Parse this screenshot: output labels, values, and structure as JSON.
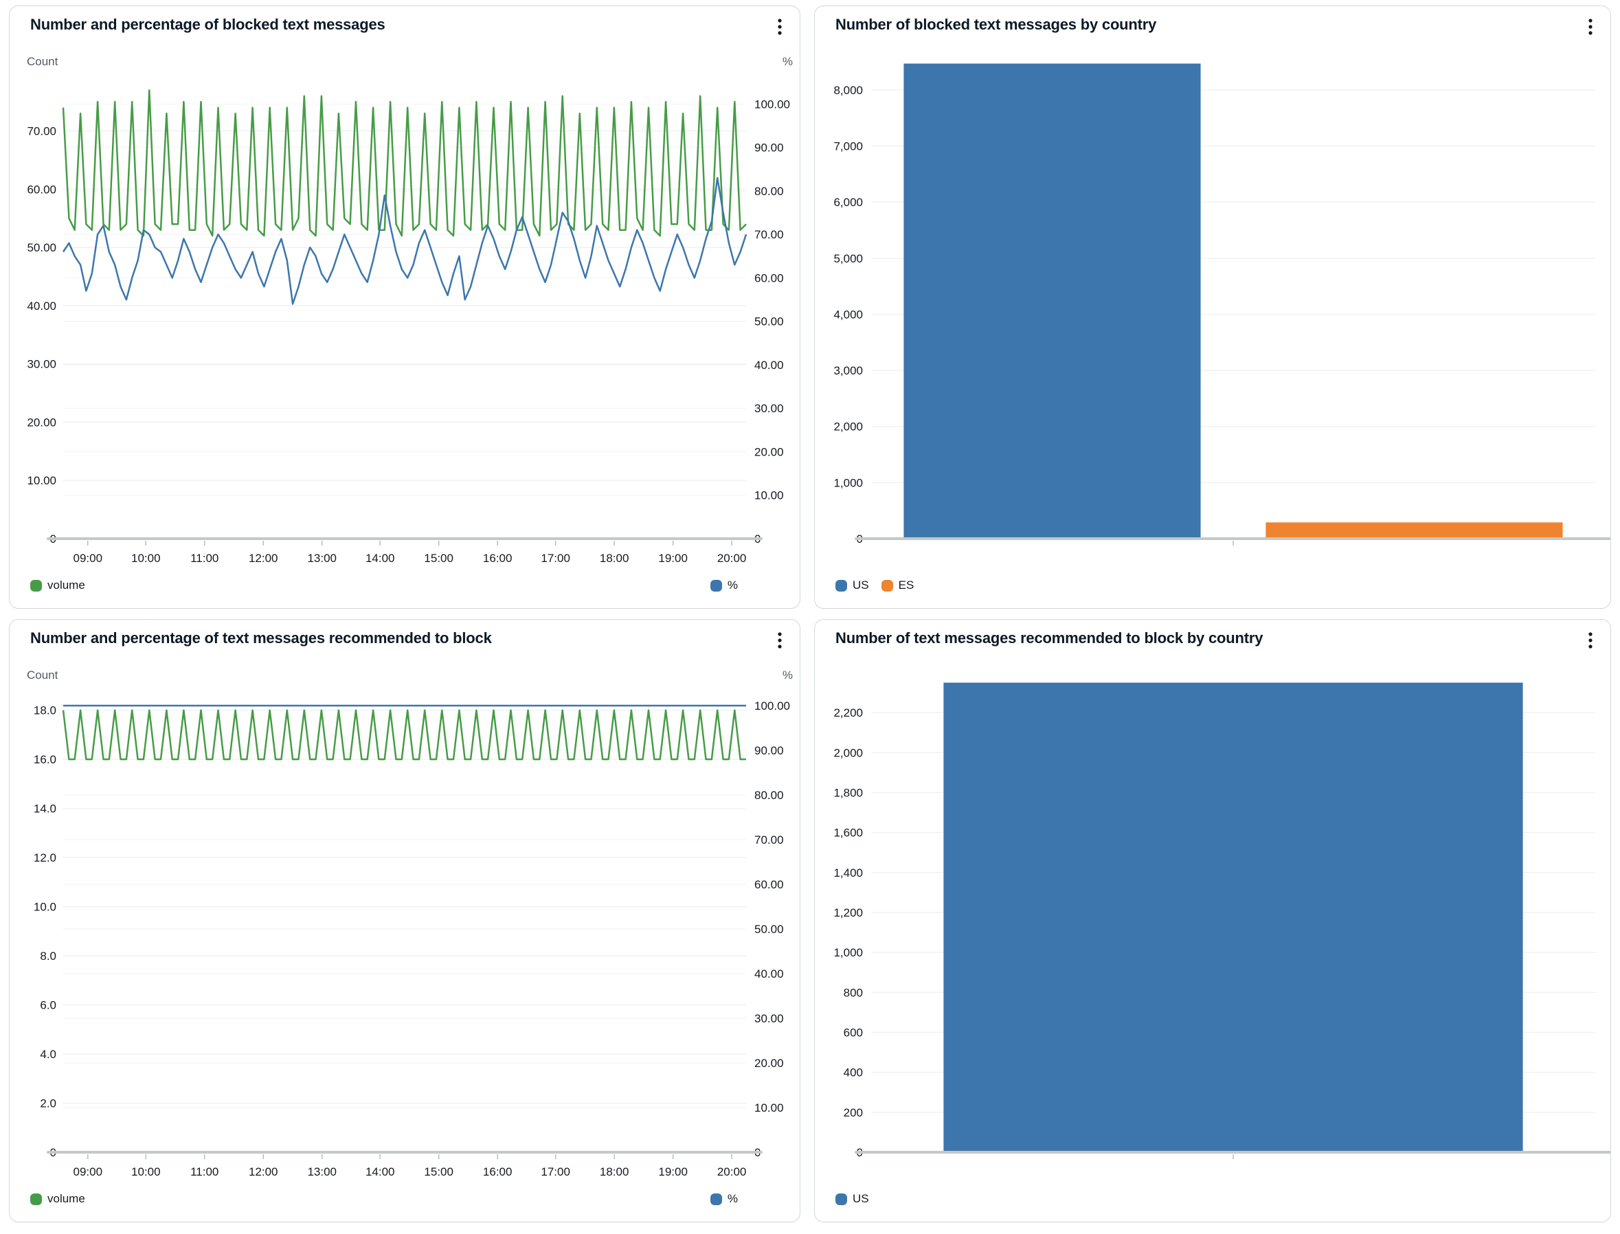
{
  "colors": {
    "green": "#469c46",
    "blue": "#3c76ad",
    "orange": "#ee8430",
    "gridline": "#f0f2f2",
    "baseline": "#c4c8c8",
    "tick_mark": "#b5bdbd",
    "title_text": "#0d1a26",
    "tick_text": "#16191f",
    "axis_caption_text": "#545b64",
    "panel_border": "#d5d9d9"
  },
  "icons": {
    "widget_menu": "kebab-vertical-three-dots"
  },
  "chart_data": [
    {
      "name": "blocked-messages-line",
      "type": "line",
      "title": "Number and percentage of blocked text messages",
      "left_axis_label": "Count",
      "right_axis_label": "%",
      "left_max": 78.2,
      "right_max": 104.8,
      "left_ticks": [
        {
          "v": 70,
          "label": "70.00"
        },
        {
          "v": 60,
          "label": "60.00"
        },
        {
          "v": 50,
          "label": "50.00"
        },
        {
          "v": 40,
          "label": "40.00"
        },
        {
          "v": 30,
          "label": "30.00"
        },
        {
          "v": 20,
          "label": "20.00"
        },
        {
          "v": 10,
          "label": "10.00"
        },
        {
          "v": 0,
          "label": "0"
        }
      ],
      "right_ticks": [
        {
          "v": 100,
          "label": "100.00"
        },
        {
          "v": 90,
          "label": "90.00"
        },
        {
          "v": 80,
          "label": "80.00"
        },
        {
          "v": 70,
          "label": "70.00"
        },
        {
          "v": 60,
          "label": "60.00"
        },
        {
          "v": 50,
          "label": "50.00"
        },
        {
          "v": 40,
          "label": "40.00"
        },
        {
          "v": 30,
          "label": "30.00"
        },
        {
          "v": 20,
          "label": "20.00"
        },
        {
          "v": 10,
          "label": "10.00"
        },
        {
          "v": 0,
          "label": "0"
        }
      ],
      "x_ticks": [
        {
          "label": "09:00",
          "pos": 0.036
        },
        {
          "label": "10:00",
          "pos": 0.121
        },
        {
          "label": "11:00",
          "pos": 0.207
        },
        {
          "label": "12:00",
          "pos": 0.293
        },
        {
          "label": "13:00",
          "pos": 0.379
        },
        {
          "label": "14:00",
          "pos": 0.464
        },
        {
          "label": "15:00",
          "pos": 0.55
        },
        {
          "label": "16:00",
          "pos": 0.636
        },
        {
          "label": "17:00",
          "pos": 0.721
        },
        {
          "label": "18:00",
          "pos": 0.807
        },
        {
          "label": "19:00",
          "pos": 0.893
        },
        {
          "label": "20:00",
          "pos": 0.979
        }
      ],
      "x_range_note": "time of day 08:35 to 20:15",
      "series": [
        {
          "name": "volume",
          "axis": "left",
          "color": "#469c46",
          "values": [
            74,
            55,
            53,
            73,
            54,
            53,
            75,
            54,
            53,
            75,
            53,
            54,
            75,
            53,
            52,
            77,
            54,
            53,
            73,
            54,
            54,
            75,
            53,
            53,
            75,
            54,
            52,
            74,
            53,
            54,
            73,
            54,
            53,
            74,
            53,
            52,
            74,
            54,
            53,
            74,
            53,
            55,
            76,
            53,
            52,
            76,
            54,
            53,
            73,
            55,
            54,
            75,
            54,
            53,
            74,
            53,
            53,
            75,
            54,
            52,
            74,
            53,
            54,
            73,
            54,
            53,
            75,
            53,
            52,
            74,
            54,
            53,
            75,
            53,
            54,
            74,
            54,
            53,
            75,
            53,
            53,
            74,
            54,
            52,
            75,
            53,
            54,
            76,
            54,
            53,
            73,
            53,
            54,
            74,
            54,
            53,
            74,
            53,
            53,
            75,
            55,
            53,
            74,
            53,
            52,
            75,
            54,
            54,
            73,
            54,
            53,
            76,
            53,
            53,
            74,
            54,
            53,
            75,
            53,
            54
          ]
        },
        {
          "name": "%",
          "axis": "right",
          "color": "#3c76ad",
          "values": [
            66,
            68,
            65,
            63,
            57,
            61,
            70,
            72,
            66,
            63,
            58,
            55,
            60,
            64,
            71,
            70,
            67,
            66,
            63,
            60,
            64,
            69,
            66,
            62,
            59,
            63,
            67,
            70,
            68,
            65,
            62,
            60,
            63,
            66,
            61,
            58,
            62,
            66,
            69,
            64,
            54,
            58,
            63,
            67,
            65,
            61,
            59,
            62,
            66,
            70,
            67,
            64,
            61,
            59,
            64,
            70,
            79,
            72,
            66,
            62,
            60,
            63,
            68,
            71,
            67,
            63,
            59,
            56,
            61,
            65,
            55,
            58,
            63,
            68,
            72,
            69,
            65,
            62,
            66,
            71,
            74,
            70,
            66,
            62,
            59,
            63,
            69,
            75,
            73,
            69,
            64,
            60,
            65,
            72,
            68,
            64,
            61,
            58,
            62,
            67,
            71,
            68,
            64,
            60,
            57,
            62,
            66,
            70,
            67,
            63,
            60,
            64,
            69,
            73,
            83,
            75,
            68,
            63,
            66,
            70
          ]
        }
      ],
      "legend_layout": "spread",
      "legend": [
        {
          "label": "volume",
          "color": "#469c46"
        },
        {
          "label": "%",
          "color": "#3c76ad"
        }
      ]
    },
    {
      "name": "blocked-messages-by-country",
      "type": "bar",
      "title": "Number of blocked text messages by country",
      "categories": [
        "US",
        "ES"
      ],
      "values": [
        8470,
        290
      ],
      "bar_colors": [
        "#3c76ad",
        "#ee8430"
      ],
      "ymax": 8550,
      "y_ticks": [
        {
          "v": 8000,
          "label": "8,000"
        },
        {
          "v": 7000,
          "label": "7,000"
        },
        {
          "v": 6000,
          "label": "6,000"
        },
        {
          "v": 5000,
          "label": "5,000"
        },
        {
          "v": 4000,
          "label": "4,000"
        },
        {
          "v": 3000,
          "label": "3,000"
        },
        {
          "v": 2000,
          "label": "2,000"
        },
        {
          "v": 1000,
          "label": "1,000"
        },
        {
          "v": 0,
          "label": "0"
        }
      ],
      "legend_layout": "start",
      "legend": [
        {
          "label": "US",
          "color": "#3c76ad"
        },
        {
          "label": "ES",
          "color": "#ee8430"
        }
      ]
    },
    {
      "name": "recommended-block-line",
      "type": "line",
      "title": "Number and percentage of text messages recommended to block",
      "left_axis_label": "Count",
      "right_axis_label": "%",
      "left_max": 18.55,
      "right_max": 102,
      "left_ticks": [
        {
          "v": 18,
          "label": "18.0"
        },
        {
          "v": 16,
          "label": "16.0"
        },
        {
          "v": 14,
          "label": "14.0"
        },
        {
          "v": 12,
          "label": "12.0"
        },
        {
          "v": 10,
          "label": "10.0"
        },
        {
          "v": 8,
          "label": "8.0"
        },
        {
          "v": 6,
          "label": "6.0"
        },
        {
          "v": 4,
          "label": "4.0"
        },
        {
          "v": 2,
          "label": "2.0"
        },
        {
          "v": 0,
          "label": "0"
        }
      ],
      "right_ticks": [
        {
          "v": 100,
          "label": "100.00"
        },
        {
          "v": 90,
          "label": "90.00"
        },
        {
          "v": 80,
          "label": "80.00"
        },
        {
          "v": 70,
          "label": "70.00"
        },
        {
          "v": 60,
          "label": "60.00"
        },
        {
          "v": 50,
          "label": "50.00"
        },
        {
          "v": 40,
          "label": "40.00"
        },
        {
          "v": 30,
          "label": "30.00"
        },
        {
          "v": 20,
          "label": "20.00"
        },
        {
          "v": 10,
          "label": "10.00"
        },
        {
          "v": 0,
          "label": "0"
        }
      ],
      "x_ticks": [
        {
          "label": "09:00",
          "pos": 0.036
        },
        {
          "label": "10:00",
          "pos": 0.121
        },
        {
          "label": "11:00",
          "pos": 0.207
        },
        {
          "label": "12:00",
          "pos": 0.293
        },
        {
          "label": "13:00",
          "pos": 0.379
        },
        {
          "label": "14:00",
          "pos": 0.464
        },
        {
          "label": "15:00",
          "pos": 0.55
        },
        {
          "label": "16:00",
          "pos": 0.636
        },
        {
          "label": "17:00",
          "pos": 0.721
        },
        {
          "label": "18:00",
          "pos": 0.807
        },
        {
          "label": "19:00",
          "pos": 0.893
        },
        {
          "label": "20:00",
          "pos": 0.979
        }
      ],
      "x_range_note": "time of day 08:35 to 20:15",
      "series": [
        {
          "name": "volume",
          "axis": "left",
          "color": "#469c46",
          "values": [
            18,
            16,
            16,
            18,
            16,
            16,
            18,
            16,
            16,
            18,
            16,
            16,
            18,
            16,
            16,
            18,
            16,
            16,
            18,
            16,
            16,
            18,
            16,
            16,
            18,
            16,
            16,
            18,
            16,
            16,
            18,
            16,
            16,
            18,
            16,
            16,
            18,
            16,
            16,
            18,
            16,
            16,
            18,
            16,
            16,
            18,
            16,
            16,
            18,
            16,
            16,
            18,
            16,
            16,
            18,
            16,
            16,
            18,
            16,
            16,
            18,
            16,
            16,
            18,
            16,
            16,
            18,
            16,
            16,
            18,
            16,
            16,
            18,
            16,
            16,
            18,
            16,
            16,
            18,
            16,
            16,
            18,
            16,
            16,
            18,
            16,
            16,
            18,
            16,
            16,
            18,
            16,
            16,
            18,
            16,
            16,
            18,
            16,
            16,
            18,
            16,
            16,
            18,
            16,
            16,
            18,
            16,
            16,
            18,
            16,
            16,
            18,
            16,
            16,
            18,
            16,
            16,
            18,
            16,
            16
          ]
        },
        {
          "name": "%",
          "axis": "right",
          "color": "#3c76ad",
          "values": [
            100,
            100,
            100,
            100,
            100,
            100,
            100,
            100,
            100,
            100,
            100,
            100,
            100,
            100,
            100,
            100,
            100,
            100,
            100,
            100,
            100,
            100,
            100,
            100,
            100,
            100,
            100,
            100,
            100,
            100,
            100,
            100,
            100,
            100,
            100,
            100,
            100,
            100,
            100,
            100,
            100,
            100,
            100,
            100,
            100,
            100,
            100,
            100,
            100,
            100,
            100,
            100,
            100,
            100,
            100,
            100,
            100,
            100,
            100,
            100,
            100,
            100,
            100,
            100,
            100,
            100,
            100,
            100,
            100,
            100,
            100,
            100,
            100,
            100,
            100,
            100,
            100,
            100,
            100,
            100,
            100,
            100,
            100,
            100,
            100,
            100,
            100,
            100,
            100,
            100,
            100,
            100,
            100,
            100,
            100,
            100,
            100,
            100,
            100,
            100,
            100,
            100,
            100,
            100,
            100,
            100,
            100,
            100,
            100,
            100,
            100,
            100,
            100,
            100,
            100,
            100,
            100,
            100,
            100,
            100
          ]
        }
      ],
      "legend_layout": "spread",
      "legend": [
        {
          "label": "volume",
          "color": "#469c46"
        },
        {
          "label": "%",
          "color": "#3c76ad"
        }
      ]
    },
    {
      "name": "recommended-block-by-country",
      "type": "bar",
      "title": "Number of text messages recommended to block by country",
      "categories": [
        "US"
      ],
      "values": [
        2350
      ],
      "bar_colors": [
        "#3c76ad"
      ],
      "ymax": 2400,
      "y_ticks": [
        {
          "v": 2200,
          "label": "2,200"
        },
        {
          "v": 2000,
          "label": "2,000"
        },
        {
          "v": 1800,
          "label": "1,800"
        },
        {
          "v": 1600,
          "label": "1,600"
        },
        {
          "v": 1400,
          "label": "1,400"
        },
        {
          "v": 1200,
          "label": "1,200"
        },
        {
          "v": 1000,
          "label": "1,000"
        },
        {
          "v": 800,
          "label": "800"
        },
        {
          "v": 600,
          "label": "600"
        },
        {
          "v": 400,
          "label": "400"
        },
        {
          "v": 200,
          "label": "200"
        },
        {
          "v": 0,
          "label": "0"
        }
      ],
      "legend_layout": "start",
      "legend": [
        {
          "label": "US",
          "color": "#3c76ad"
        }
      ]
    }
  ]
}
